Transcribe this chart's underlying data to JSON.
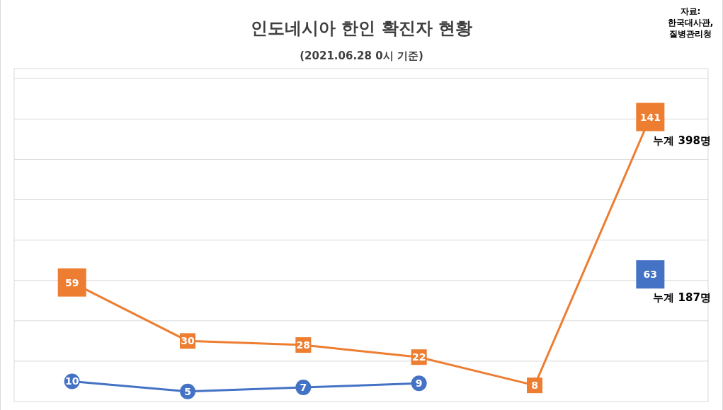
{
  "chart_data": {
    "type": "line",
    "title": "인도네시아 한인 확진자 현황",
    "subtitle": "(2021.06.28 0시 기준)",
    "categories": [
      null,
      null,
      null,
      null,
      null,
      null
    ],
    "series": [
      {
        "color": "#ed7d31",
        "marker": "square",
        "values": [
          59,
          30,
          28,
          22,
          8,
          141
        ]
      },
      {
        "color": "#4472c4",
        "marker": "circle",
        "values": [
          10,
          5,
          7,
          9,
          null,
          63
        ]
      }
    ],
    "ylim": [
      0,
      165
    ],
    "yticks": [
      {
        "value": 20,
        "label": null
      },
      {
        "value": 40,
        "label": null
      },
      {
        "value": 60,
        "label": null
      },
      {
        "value": 80,
        "label": null
      },
      {
        "value": 100,
        "label": null
      },
      {
        "value": 120,
        "label": null
      },
      {
        "value": 140,
        "label": null
      },
      {
        "value": 160,
        "label": null
      }
    ],
    "grid": "y",
    "data_labels": true,
    "annotations": [
      "누계 398명",
      "누계 187명",
      "자료:\n한국대사관,\n질병관리청"
    ]
  }
}
